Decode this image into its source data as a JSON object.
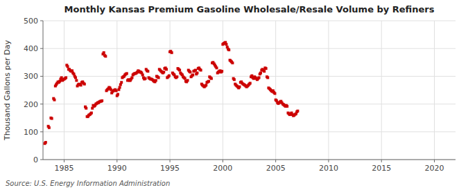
{
  "chart_data": {
    "type": "scatter",
    "title": "Monthly Kansas Premium Gasoline Wholesale/Resale Volume by Refiners",
    "ylabel": "Thousand Gallons per Day",
    "source": "Source: U.S. Energy Information Administration",
    "color": "#cc0000",
    "marker": "square",
    "grid": true,
    "xlim": [
      1983.0,
      2022.0
    ],
    "ylim": [
      0,
      500
    ],
    "xticks": [
      1985,
      1990,
      1995,
      2000,
      2005,
      2010,
      2015,
      2020
    ],
    "yticks": [
      0,
      100,
      200,
      300,
      400,
      500
    ],
    "x": [
      1983.17,
      1983.25,
      1983.5,
      1983.58,
      1983.75,
      1983.83,
      1984.0,
      1984.08,
      1984.17,
      1984.25,
      1984.33,
      1984.42,
      1984.5,
      1984.58,
      1984.67,
      1984.75,
      1984.83,
      1984.92,
      1985.0,
      1985.08,
      1985.17,
      1985.25,
      1985.33,
      1985.42,
      1985.5,
      1985.58,
      1985.67,
      1985.75,
      1985.83,
      1985.92,
      1986.0,
      1986.08,
      1986.17,
      1986.25,
      1986.33,
      1986.42,
      1986.5,
      1986.58,
      1986.67,
      1986.75,
      1986.83,
      1986.92,
      1987.0,
      1987.08,
      1987.17,
      1987.25,
      1987.33,
      1987.42,
      1987.5,
      1987.58,
      1987.67,
      1987.75,
      1987.83,
      1987.92,
      1988.0,
      1988.08,
      1988.17,
      1988.25,
      1988.33,
      1988.42,
      1988.5,
      1988.58,
      1988.67,
      1988.75,
      1988.83,
      1988.92,
      1989.0,
      1989.08,
      1989.17,
      1989.25,
      1989.33,
      1989.42,
      1989.5,
      1989.58,
      1989.67,
      1989.75,
      1989.83,
      1989.92,
      1990.0,
      1990.08,
      1990.17,
      1990.25,
      1990.33,
      1990.42,
      1990.5,
      1990.58,
      1990.67,
      1990.75,
      1990.83,
      1990.92,
      1991.0,
      1991.08,
      1991.17,
      1991.25,
      1991.33,
      1991.42,
      1991.5,
      1991.58,
      1991.67,
      1991.75,
      1991.83,
      1991.92,
      1992.0,
      1992.08,
      1992.17,
      1992.25,
      1992.33,
      1992.42,
      1992.5,
      1992.58,
      1992.67,
      1992.75,
      1992.83,
      1992.92,
      1993.0,
      1993.08,
      1993.17,
      1993.25,
      1993.33,
      1993.42,
      1993.5,
      1993.58,
      1993.67,
      1993.75,
      1993.83,
      1993.92,
      1994.0,
      1994.08,
      1994.17,
      1994.25,
      1994.33,
      1994.42,
      1994.5,
      1994.58,
      1994.67,
      1994.75,
      1994.83,
      1994.92,
      1995.0,
      1995.08,
      1995.17,
      1995.25,
      1995.33,
      1995.42,
      1995.5,
      1995.58,
      1995.67,
      1995.75,
      1995.83,
      1995.92,
      1996.0,
      1996.08,
      1996.17,
      1996.25,
      1996.33,
      1996.42,
      1996.5,
      1996.58,
      1996.67,
      1996.75,
      1996.83,
      1996.92,
      1997.0,
      1997.08,
      1997.17,
      1997.25,
      1997.33,
      1997.42,
      1997.5,
      1997.58,
      1997.67,
      1997.75,
      1997.83,
      1997.92,
      1998.0,
      1998.08,
      1998.17,
      1998.25,
      1998.33,
      1998.42,
      1998.5,
      1998.58,
      1998.67,
      1998.75,
      1998.83,
      1998.92,
      1999.0,
      1999.08,
      1999.17,
      1999.25,
      1999.33,
      1999.42,
      1999.5,
      1999.58,
      1999.67,
      1999.75,
      1999.83,
      1999.92,
      2000.0,
      2000.08,
      2000.17,
      2000.25,
      2000.33,
      2000.42,
      2000.5,
      2000.58,
      2000.67,
      2000.75,
      2000.83,
      2000.92,
      2001.0,
      2001.08,
      2001.17,
      2001.25,
      2001.33,
      2001.42,
      2001.5,
      2001.58,
      2001.67,
      2001.75,
      2001.83,
      2001.92,
      2002.0,
      2002.08,
      2002.17,
      2002.25,
      2002.33,
      2002.42,
      2002.5,
      2002.58,
      2002.67,
      2002.75,
      2002.83,
      2002.92,
      2003.0,
      2003.08,
      2003.17,
      2003.25,
      2003.33,
      2003.42,
      2003.5,
      2003.58,
      2003.67,
      2003.75,
      2003.83,
      2003.92,
      2004.0,
      2004.08,
      2004.17,
      2004.25,
      2004.33,
      2004.42,
      2004.5,
      2004.58,
      2004.67,
      2004.75,
      2004.83,
      2004.92,
      2005.0,
      2005.08,
      2005.17,
      2005.25,
      2005.33,
      2005.42,
      2005.5,
      2005.58,
      2005.67,
      2005.75,
      2005.83,
      2005.92,
      2006.0,
      2006.08,
      2006.17,
      2006.25,
      2006.33,
      2006.42,
      2006.5,
      2006.58,
      2006.67,
      2006.75,
      2006.83,
      2006.92,
      2007.0,
      2007.08
    ],
    "values": [
      58,
      62,
      120,
      115,
      150,
      148,
      220,
      215,
      265,
      270,
      275,
      280,
      278,
      282,
      290,
      295,
      285,
      288,
      290,
      292,
      295,
      340,
      335,
      325,
      325,
      320,
      318,
      320,
      312,
      308,
      300,
      295,
      285,
      265,
      270,
      272,
      270,
      268,
      278,
      280,
      275,
      272,
      190,
      185,
      155,
      155,
      160,
      162,
      165,
      168,
      185,
      195,
      192,
      195,
      200,
      202,
      205,
      205,
      208,
      210,
      210,
      212,
      380,
      385,
      375,
      372,
      248,
      252,
      255,
      260,
      258,
      252,
      240,
      245,
      248,
      250,
      252,
      248,
      230,
      235,
      252,
      260,
      270,
      278,
      295,
      298,
      300,
      305,
      308,
      310,
      285,
      288,
      285,
      285,
      290,
      295,
      305,
      308,
      310,
      310,
      312,
      315,
      320,
      318,
      315,
      315,
      312,
      305,
      295,
      290,
      292,
      325,
      320,
      318,
      295,
      292,
      290,
      290,
      288,
      285,
      282,
      280,
      285,
      300,
      298,
      295,
      325,
      322,
      318,
      315,
      312,
      315,
      328,
      330,
      325,
      295,
      298,
      302,
      388,
      390,
      385,
      312,
      308,
      305,
      298,
      295,
      298,
      328,
      325,
      322,
      312,
      308,
      305,
      298,
      295,
      292,
      282,
      280,
      285,
      322,
      318,
      315,
      298,
      302,
      305,
      318,
      320,
      322,
      308,
      312,
      328,
      330,
      325,
      322,
      272,
      268,
      265,
      262,
      265,
      268,
      278,
      280,
      282,
      298,
      295,
      292,
      348,
      350,
      345,
      340,
      335,
      330,
      312,
      315,
      318,
      320,
      315,
      318,
      415,
      418,
      420,
      422,
      415,
      405,
      398,
      395,
      358,
      355,
      352,
      348,
      292,
      288,
      272,
      268,
      265,
      262,
      258,
      262,
      278,
      280,
      275,
      272,
      270,
      268,
      265,
      262,
      265,
      268,
      272,
      275,
      298,
      302,
      295,
      292,
      298,
      295,
      292,
      288,
      292,
      295,
      308,
      312,
      322,
      325,
      322,
      318,
      330,
      328,
      298,
      295,
      258,
      255,
      252,
      248,
      245,
      248,
      242,
      238,
      215,
      212,
      205,
      202,
      205,
      208,
      210,
      205,
      200,
      198,
      195,
      192,
      195,
      192,
      168,
      165,
      162,
      165,
      168,
      162,
      158,
      160,
      163,
      165,
      172,
      175
    ]
  }
}
